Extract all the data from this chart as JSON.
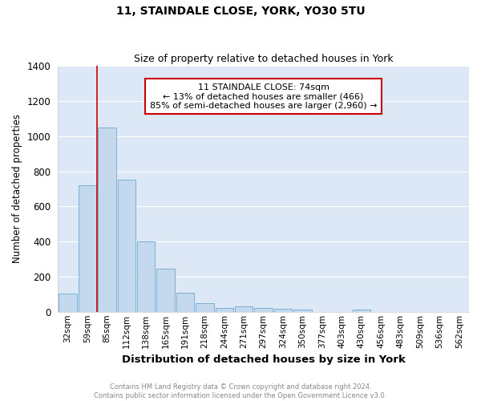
{
  "title": "11, STAINDALE CLOSE, YORK, YO30 5TU",
  "subtitle": "Size of property relative to detached houses in York",
  "xlabel": "Distribution of detached houses by size in York",
  "ylabel": "Number of detached properties",
  "bar_color": "#c5d9ee",
  "bar_edge_color": "#7aafd4",
  "background_color": "#dce8f5",
  "grid_color": "#ffffff",
  "fig_background": "#ffffff",
  "categories": [
    "32sqm",
    "59sqm",
    "85sqm",
    "112sqm",
    "138sqm",
    "165sqm",
    "191sqm",
    "218sqm",
    "244sqm",
    "271sqm",
    "297sqm",
    "324sqm",
    "350sqm",
    "377sqm",
    "403sqm",
    "430sqm",
    "456sqm",
    "483sqm",
    "509sqm",
    "536sqm",
    "562sqm"
  ],
  "values": [
    105,
    720,
    1050,
    750,
    400,
    245,
    110,
    48,
    22,
    30,
    22,
    18,
    12,
    0,
    0,
    12,
    0,
    0,
    0,
    0,
    0
  ],
  "ylim": [
    0,
    1400
  ],
  "yticks": [
    0,
    200,
    400,
    600,
    800,
    1000,
    1200,
    1400
  ],
  "property_line_x": 1.5,
  "annotation_line1": "11 STAINDALE CLOSE: 74sqm",
  "annotation_line2": "← 13% of detached houses are smaller (466)",
  "annotation_line3": "85% of semi-detached houses are larger (2,960) →",
  "footer_text": "Contains HM Land Registry data © Crown copyright and database right 2024.\nContains public sector information licensed under the Open Government Licence v3.0.",
  "red_line_color": "#cc0000",
  "annotation_box_edge": "#cc0000"
}
